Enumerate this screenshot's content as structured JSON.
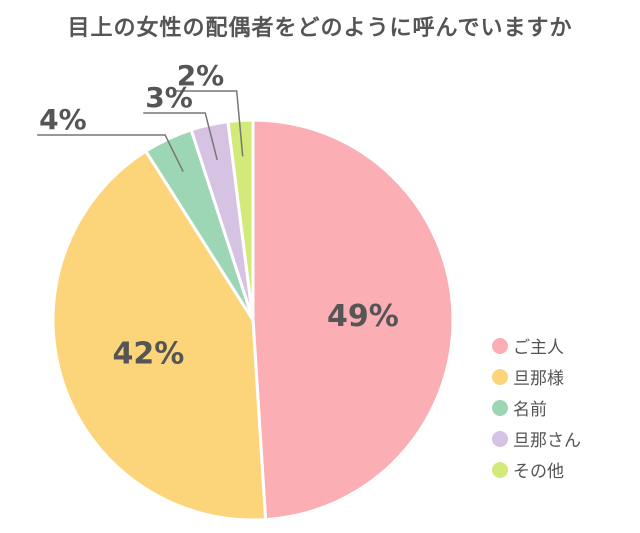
{
  "chart_data": {
    "type": "pie",
    "title": "目上の女性の配偶者をどのように呼んでいますか",
    "unit": "%",
    "slices": [
      {
        "label": "ご主人",
        "value": 49,
        "color": "#FBAFB4"
      },
      {
        "label": "旦那様",
        "value": 42,
        "color": "#FCD57A"
      },
      {
        "label": "名前",
        "value": 4,
        "color": "#9DD6B5"
      },
      {
        "label": "旦那さん",
        "value": 3,
        "color": "#D6C2E3"
      },
      {
        "label": "その他",
        "value": 2,
        "color": "#D3E97A"
      }
    ],
    "legend_position": "right"
  }
}
